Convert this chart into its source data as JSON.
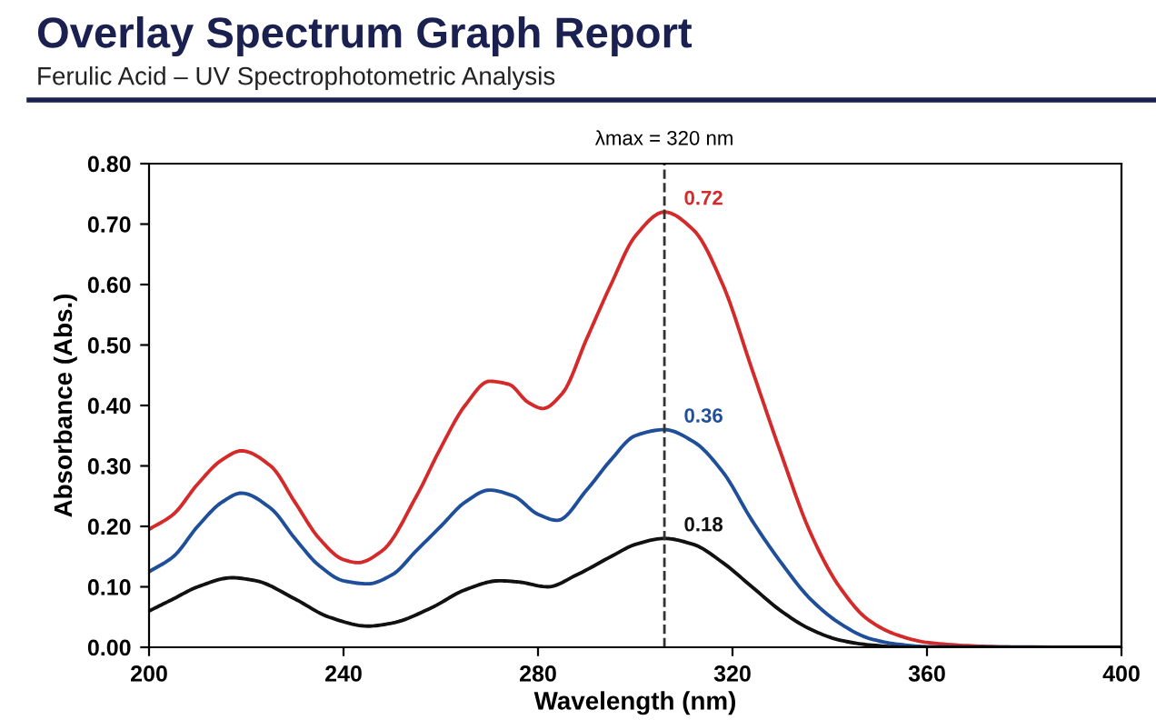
{
  "chart_data": {
    "type": "line",
    "title": "Overlay Spectrum Graph Report",
    "subtitle": "Ferulic Acid – UV Spectrophotometric Analysis",
    "xlabel": "Wavelength (nm)",
    "ylabel": "Absorbance (Abs.)",
    "series": [
      {
        "color": "#d42a2a",
        "x": [
          200,
          205,
          210,
          215,
          219,
          225,
          230,
          235,
          240,
          243,
          248,
          255,
          260,
          265,
          270,
          274,
          278,
          281,
          285,
          290,
          295,
          300,
          306,
          312,
          318,
          324,
          330,
          336,
          342,
          348,
          354,
          360,
          370,
          380,
          400
        ],
        "values": [
          0.195,
          0.22,
          0.27,
          0.31,
          0.325,
          0.3,
          0.24,
          0.18,
          0.145,
          0.14,
          0.16,
          0.25,
          0.33,
          0.4,
          0.44,
          0.435,
          0.405,
          0.395,
          0.42,
          0.51,
          0.6,
          0.68,
          0.72,
          0.69,
          0.6,
          0.46,
          0.32,
          0.19,
          0.1,
          0.045,
          0.02,
          0.008,
          0.002,
          0.0,
          0.0
        ],
        "value_labels": [
          null,
          null,
          null,
          null,
          null,
          null,
          null,
          null,
          null,
          null,
          null,
          null,
          null,
          null,
          null,
          null,
          null,
          null,
          null,
          null,
          null,
          null,
          "0.72",
          null,
          null,
          null,
          null,
          null,
          null,
          null,
          null,
          null,
          null,
          null,
          null
        ]
      },
      {
        "color": "#1f4e9a",
        "x": [
          200,
          205,
          210,
          215,
          219,
          225,
          230,
          235,
          240,
          245,
          250,
          255,
          260,
          265,
          270,
          275,
          280,
          284,
          290,
          295,
          300,
          306,
          312,
          318,
          324,
          330,
          336,
          342,
          348,
          354,
          360,
          400
        ],
        "values": [
          0.125,
          0.15,
          0.2,
          0.24,
          0.255,
          0.23,
          0.18,
          0.135,
          0.11,
          0.105,
          0.12,
          0.16,
          0.2,
          0.24,
          0.26,
          0.25,
          0.22,
          0.21,
          0.26,
          0.31,
          0.35,
          0.36,
          0.34,
          0.29,
          0.21,
          0.14,
          0.08,
          0.04,
          0.015,
          0.005,
          0.001,
          0.0
        ],
        "value_labels": [
          null,
          null,
          null,
          null,
          null,
          null,
          null,
          null,
          null,
          null,
          null,
          null,
          null,
          null,
          null,
          null,
          null,
          null,
          null,
          null,
          null,
          "0.36",
          null,
          null,
          null,
          null,
          null,
          null,
          null,
          null,
          null,
          null
        ]
      },
      {
        "color": "#111111",
        "x": [
          200,
          205,
          210,
          217,
          222,
          230,
          237,
          245,
          250,
          258,
          265,
          272,
          276,
          282,
          288,
          295,
          300,
          306,
          312,
          318,
          324,
          330,
          336,
          342,
          348,
          356,
          400
        ],
        "values": [
          0.06,
          0.08,
          0.1,
          0.115,
          0.11,
          0.08,
          0.05,
          0.035,
          0.04,
          0.065,
          0.095,
          0.11,
          0.108,
          0.1,
          0.12,
          0.15,
          0.17,
          0.18,
          0.17,
          0.14,
          0.1,
          0.06,
          0.03,
          0.012,
          0.004,
          0.0,
          0.0
        ],
        "value_labels": [
          null,
          null,
          null,
          null,
          null,
          null,
          null,
          null,
          null,
          null,
          null,
          null,
          null,
          null,
          null,
          null,
          null,
          "0.18",
          null,
          null,
          null,
          null,
          null,
          null,
          null,
          null,
          null
        ]
      }
    ],
    "annotations": [
      "λmax = 320 nm"
    ],
    "ref_lines": [
      {
        "axis": "x",
        "value": 306,
        "color": "#333333",
        "line_style": "dashed"
      }
    ],
    "xlim": [
      200,
      400
    ],
    "xticks": [
      200,
      240,
      280,
      320,
      360,
      400
    ],
    "ylim": [
      0,
      0.8
    ],
    "yticks": [
      {
        "value": 0,
        "label": "0.00"
      },
      {
        "value": 0.1,
        "label": "0.10"
      },
      {
        "value": 0.2,
        "label": "0.20"
      },
      {
        "value": 0.3,
        "label": "0.30"
      },
      {
        "value": 0.4,
        "label": "0.40"
      },
      {
        "value": 0.5,
        "label": "0.50"
      },
      {
        "value": 0.6,
        "label": "0.60"
      },
      {
        "value": 0.7,
        "label": "0.70"
      },
      {
        "value": 0.8,
        "label": "0.80"
      }
    ],
    "grid": false,
    "legend": false,
    "marker": "none",
    "line_style": "solid"
  }
}
